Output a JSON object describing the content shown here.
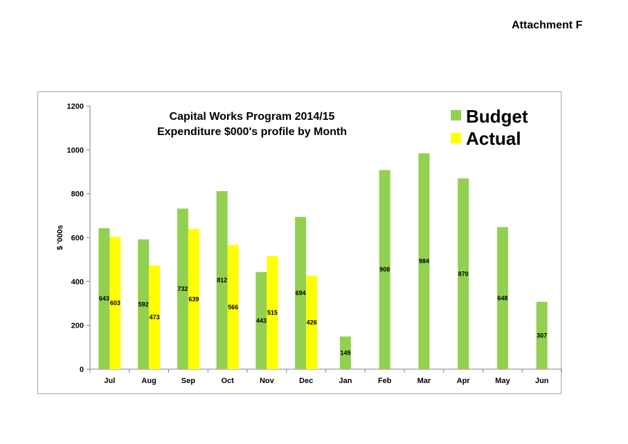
{
  "header": {
    "attachment": "Attachment F"
  },
  "colors": {
    "budget": "#92d050",
    "actual": "#ffff00"
  },
  "chart_data": {
    "type": "bar",
    "title": [
      "Capital Works Program 2014/15",
      "Expenditure $000's profile by Month"
    ],
    "xlabel": "",
    "ylabel": "$ '000s",
    "ylim": [
      0,
      1200
    ],
    "yticks": [
      0,
      200,
      400,
      600,
      800,
      1000,
      1200
    ],
    "categories": [
      "Jul",
      "Aug",
      "Sep",
      "Oct",
      "Nov",
      "Dec",
      "Jan",
      "Feb",
      "Mar",
      "Apr",
      "May",
      "Jun"
    ],
    "series": [
      {
        "name": "Budget",
        "color": "#92d050",
        "values": [
          643,
          592,
          732,
          812,
          443,
          694,
          149,
          908,
          984,
          870,
          648,
          307
        ]
      },
      {
        "name": "Actual",
        "color": "#ffff00",
        "values": [
          603,
          473,
          639,
          566,
          515,
          426,
          null,
          null,
          null,
          null,
          null,
          null
        ]
      }
    ],
    "legend": "top-right",
    "grid": false
  }
}
